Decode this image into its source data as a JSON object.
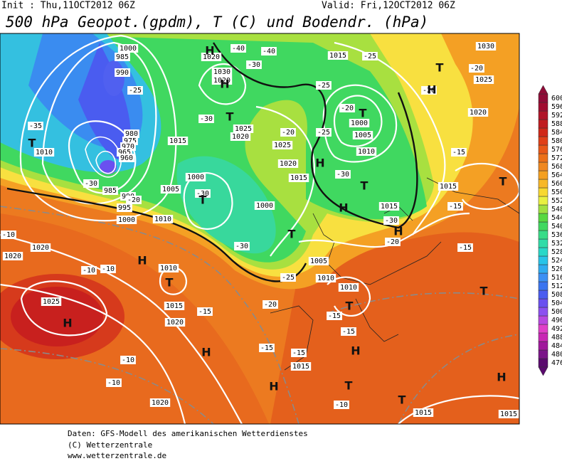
{
  "header": {
    "init": "Init : Thu,11OCT2012 06Z",
    "valid": "Valid: Fri,12OCT2012 06Z",
    "title": "500 hPa Geopot.(gpdm), T (C) und Bodendr. (hPa)"
  },
  "legend": {
    "levels": [
      476,
      480,
      484,
      488,
      492,
      496,
      500,
      504,
      508,
      512,
      516,
      520,
      524,
      528,
      532,
      536,
      540,
      544,
      548,
      552,
      556,
      560,
      564,
      568,
      572,
      576,
      580,
      584,
      588,
      592,
      596,
      600
    ],
    "colors": [
      "#5a0a6e",
      "#7a1488",
      "#a0189c",
      "#c828b4",
      "#e040c8",
      "#b848e0",
      "#8c50f0",
      "#6a50f0",
      "#4a5cf0",
      "#3a74f0",
      "#3c90f4",
      "#30acf0",
      "#28c4e8",
      "#28d8c8",
      "#30dca8",
      "#38dc88",
      "#40d860",
      "#58d840",
      "#a0e040",
      "#e8f040",
      "#f8d830",
      "#f8b828",
      "#f4a020",
      "#f08820",
      "#ec7018",
      "#e85818",
      "#e04018",
      "#d02818",
      "#c01c20",
      "#b01428",
      "#a00c30",
      "#900c38"
    ]
  },
  "isoline_labels": [
    "1000",
    "985",
    "990",
    "980",
    "975",
    "970",
    "965",
    "960",
    "985",
    "990",
    "995",
    "1000",
    "1010",
    "1020",
    "1020",
    "1025",
    "1015",
    "1020",
    "1010",
    "1005",
    "1010",
    "1015",
    "1000",
    "1020",
    "1030",
    "1020",
    "1025",
    "1020",
    "1025",
    "1020",
    "1015",
    "1000",
    "1005",
    "1010",
    "1010",
    "1015",
    "1020",
    "1000",
    "1005",
    "1010",
    "1015",
    "1015",
    "1025",
    "1030",
    "1020",
    "1015",
    "1015",
    "1015",
    "-35",
    "-30",
    "-25",
    "-20",
    "-15",
    "-10",
    "-10",
    "-10",
    "-15",
    "-15",
    "-20",
    "-25",
    "-30",
    "-30",
    "-30",
    "-40",
    "-40",
    "-30",
    "-25",
    "-20",
    "-25",
    "-30",
    "-30",
    "-20",
    "-15",
    "-15",
    "-15",
    "-20",
    "-25",
    "-20",
    "-10",
    "-15",
    "-15",
    "-10",
    "-10",
    "-20"
  ],
  "centers": [
    "T",
    "H",
    "H",
    "T",
    "H",
    "T",
    "T",
    "H",
    "H",
    "T",
    "H",
    "T",
    "T",
    "H",
    "H",
    "T",
    "H",
    "T",
    "T",
    "T",
    "H",
    "H",
    "T",
    "T",
    "H"
  ],
  "footer": [
    "Daten: GFS-Modell des amerikanischen Wetterdienstes",
    "(C) Wetterzentrale",
    "www.wetterzentrale.de"
  ]
}
